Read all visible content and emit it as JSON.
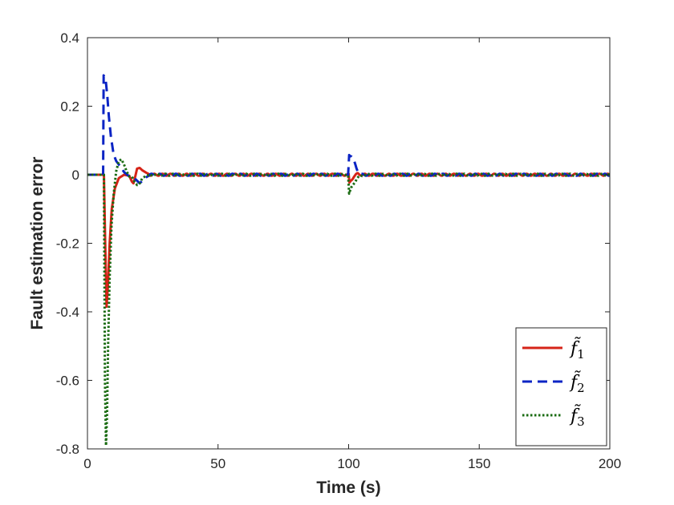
{
  "chart_data": {
    "type": "line",
    "title": "",
    "xlabel": "Time (s)",
    "ylabel": "Fault estimation error",
    "xlim": [
      0,
      200
    ],
    "ylim": [
      -0.8,
      0.4
    ],
    "xticks": [
      0,
      50,
      100,
      150,
      200
    ],
    "xtick_labels": [
      "0",
      "50",
      "100",
      "150",
      "200"
    ],
    "yticks": [
      -0.8,
      -0.6,
      -0.4,
      -0.2,
      0,
      0.2,
      0.4
    ],
    "ytick_labels": [
      "-0.8",
      "-0.6",
      "-0.4",
      "-0.2",
      "0",
      "0.2",
      "0.4"
    ],
    "grid": false,
    "legend_position": "bottom-right",
    "series": [
      {
        "name": "f̃1",
        "sub": "1",
        "color": "#d62418",
        "dash": "solid",
        "x": [
          0,
          6.3,
          6.8,
          7.3,
          7.8,
          8.5,
          9.3,
          10.5,
          12,
          14,
          16,
          17,
          17.6,
          18.3,
          19,
          20,
          21,
          22.5,
          24,
          100,
          100.3,
          101,
          102,
          103.5,
          105,
          200
        ],
        "y": [
          0,
          0,
          -0.2,
          -0.385,
          -0.33,
          -0.2,
          -0.1,
          -0.04,
          -0.01,
          0,
          -0.003,
          -0.02,
          -0.025,
          -0.005,
          0.018,
          0.02,
          0.013,
          0.006,
          0,
          0,
          -0.025,
          -0.015,
          -0.005,
          0.003,
          0,
          0
        ]
      },
      {
        "name": "f̃2",
        "sub": "2",
        "color": "#0b24c4",
        "dash": "dashed",
        "x": [
          0,
          6,
          6.2,
          7,
          7.6,
          8.2,
          9,
          10,
          11,
          12.5,
          14,
          16,
          18,
          20,
          22,
          24,
          99.8,
          100.2,
          101,
          102,
          103,
          104,
          105,
          200
        ],
        "y": [
          0,
          0,
          0.29,
          0.275,
          0.23,
          0.17,
          0.11,
          0.06,
          0.04,
          0.025,
          0.008,
          -0.005,
          -0.01,
          -0.025,
          -0.01,
          0,
          0,
          0.06,
          0.055,
          0.04,
          0.02,
          0.005,
          0,
          0
        ]
      },
      {
        "name": "f̃3",
        "sub": "3",
        "color": "#1a6b12",
        "dash": "dotted",
        "x": [
          0,
          6.3,
          6.7,
          7.1,
          7.5,
          7.9,
          8.5,
          9.2,
          10,
          11,
          12,
          13,
          14,
          15,
          16,
          17,
          18,
          19,
          20,
          21,
          22.5,
          24,
          99.8,
          100.2,
          101,
          102,
          103,
          104.5,
          106,
          200
        ],
        "y": [
          0,
          0,
          -0.6,
          -0.79,
          -0.7,
          -0.5,
          -0.3,
          -0.15,
          -0.06,
          0.01,
          0.04,
          0.045,
          0.03,
          0.01,
          -0.005,
          -0.005,
          -0.02,
          -0.03,
          -0.025,
          -0.01,
          -0.003,
          0,
          0,
          -0.055,
          -0.04,
          -0.025,
          -0.012,
          -0.004,
          0,
          0
        ]
      }
    ]
  }
}
